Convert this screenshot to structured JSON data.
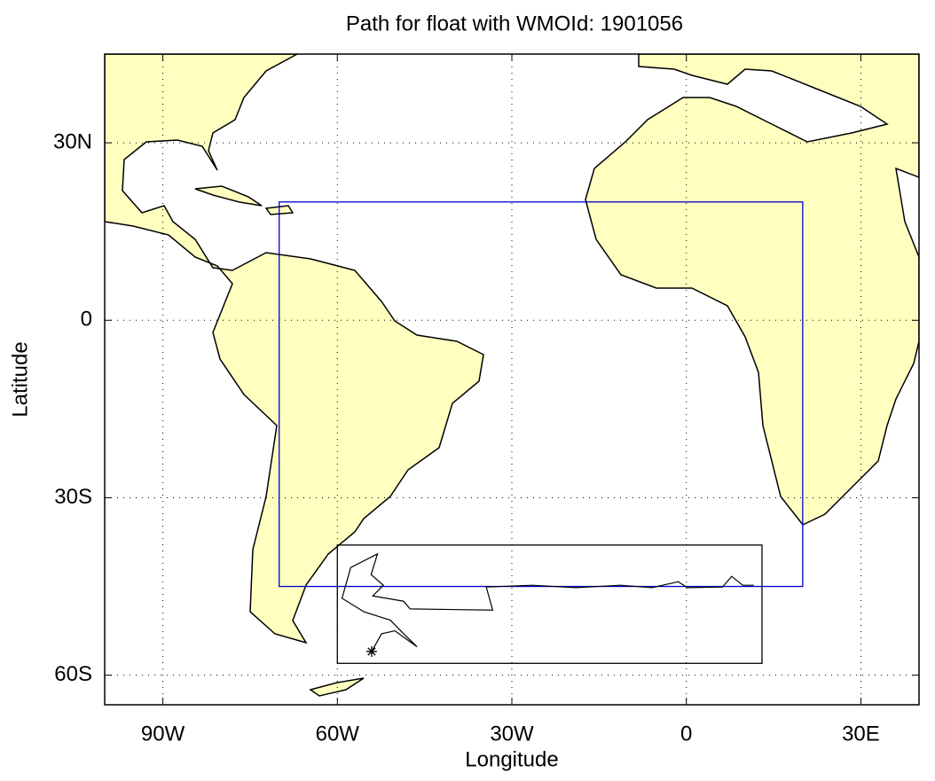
{
  "chart_data": {
    "type": "map",
    "title": "Path for float with WMOId: 1901056",
    "xlabel": "Longitude",
    "ylabel": "Latitude",
    "xlim": [
      -100,
      40
    ],
    "ylim": [
      -65,
      45
    ],
    "xticks": [
      {
        "value": -90,
        "label": "90W"
      },
      {
        "value": -60,
        "label": "60W"
      },
      {
        "value": -30,
        "label": "30W"
      },
      0,
      {
        "value": 30,
        "label": "30E"
      }
    ],
    "yticks": [
      {
        "value": 30,
        "label": "30N"
      },
      0,
      {
        "value": -30,
        "label": "30S"
      },
      {
        "value": -60,
        "label": "60S"
      }
    ],
    "grid": true,
    "boxes": [
      {
        "color": "#0000cc",
        "lon": [
          -70,
          20
        ],
        "lat": [
          -45,
          20
        ]
      },
      {
        "color": "#000000",
        "lon": [
          -60,
          13
        ],
        "lat": [
          -58,
          -38
        ]
      }
    ],
    "track": {
      "color": "#000000",
      "lon": [
        -54.1,
        -52.4,
        -50.1,
        -46.3,
        -48.6,
        -50.9,
        -55.4,
        -59.2,
        -57.7,
        -53.1,
        -54.2,
        -52.1,
        -53.9,
        -48.6,
        -47.5,
        -33.3,
        -34.4,
        -26.5,
        -18.9,
        -11.3,
        -5.9,
        -1.4,
        0.2,
        6.2,
        7.8,
        9.7,
        11.6
      ],
      "lat": [
        -56.0,
        -53.0,
        -52.5,
        -55.2,
        -53.0,
        -50.7,
        -49.3,
        -47.0,
        -41.8,
        -39.5,
        -43.0,
        -44.8,
        -46.6,
        -47.5,
        -48.8,
        -49.0,
        -45.1,
        -44.8,
        -45.2,
        -44.8,
        -45.2,
        -44.2,
        -45.2,
        -45.1,
        -43.3,
        -44.8,
        -44.8
      ]
    }
  }
}
